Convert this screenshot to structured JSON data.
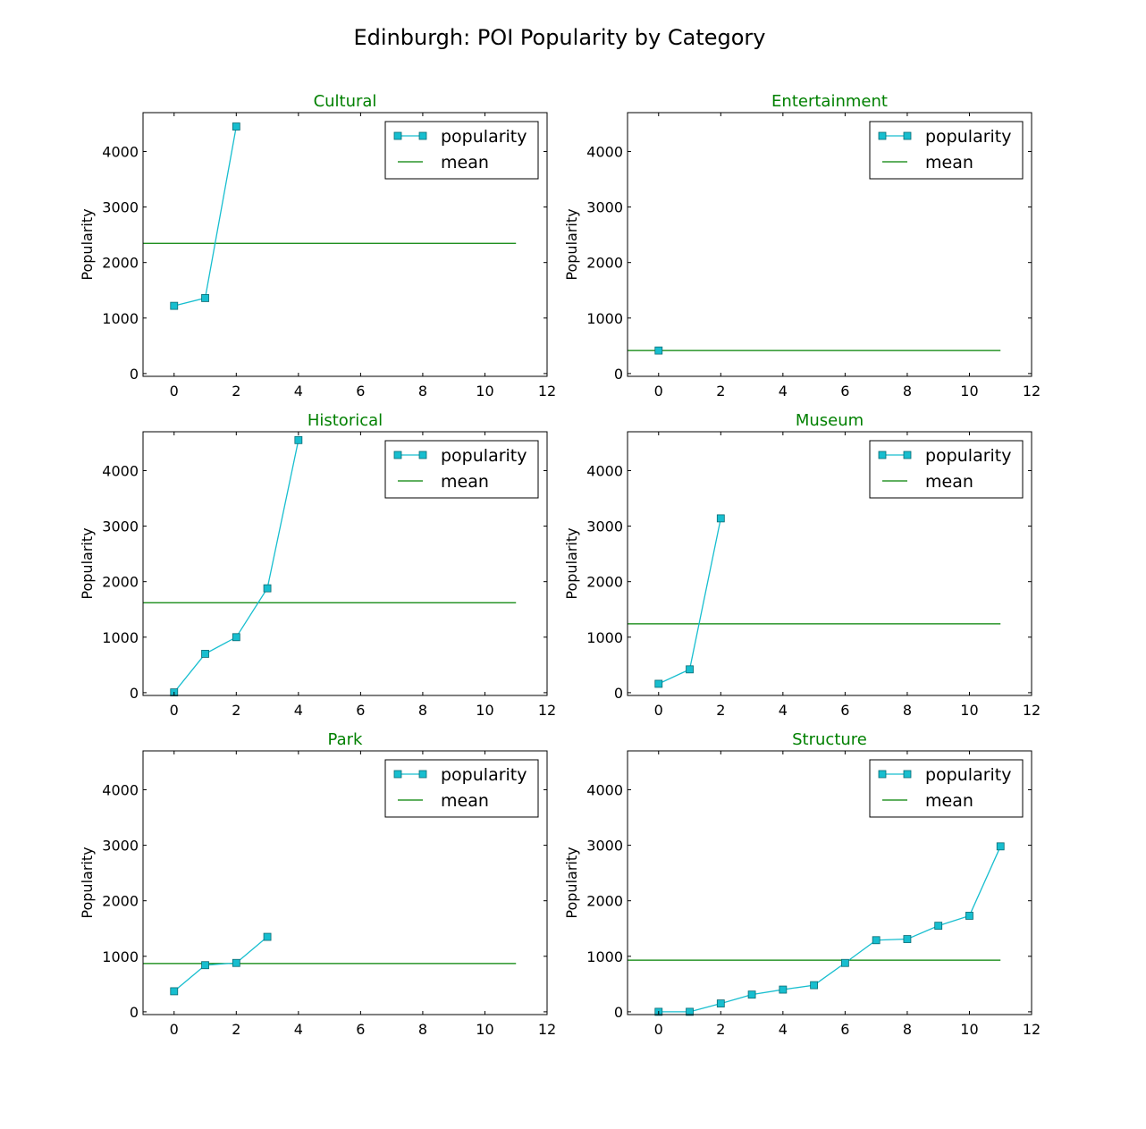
{
  "figure": {
    "title": "Edinburgh: POI Popularity by Category"
  },
  "colors": {
    "line": "#17becf",
    "marker_fill": "#17becf",
    "marker_edge": "#0b6b73",
    "mean": "#008000",
    "subtitle": "#008000",
    "axes": "#000000"
  },
  "chart_data": [
    {
      "type": "line",
      "title": "Cultural",
      "ylabel": "Popularity",
      "x": [
        0,
        1,
        2
      ],
      "series": [
        {
          "name": "popularity",
          "values": [
            1220,
            1360,
            4450
          ]
        }
      ],
      "mean": 2345,
      "mean_label": "mean",
      "mean_range": [
        -1,
        11
      ],
      "xlim": [
        -1,
        12
      ],
      "ylim": [
        -50,
        4700
      ],
      "xticks": [
        0,
        2,
        4,
        6,
        8,
        10,
        12
      ],
      "yticks": [
        0,
        1000,
        2000,
        3000,
        4000
      ],
      "legend": "top-right"
    },
    {
      "type": "line",
      "title": "Entertainment",
      "ylabel": "Popularity",
      "x": [
        0
      ],
      "series": [
        {
          "name": "popularity",
          "values": [
            415
          ]
        }
      ],
      "mean": 415,
      "mean_label": "mean",
      "mean_range": [
        -1,
        11
      ],
      "xlim": [
        -1,
        12
      ],
      "ylim": [
        -50,
        4700
      ],
      "xticks": [
        0,
        2,
        4,
        6,
        8,
        10,
        12
      ],
      "yticks": [
        0,
        1000,
        2000,
        3000,
        4000
      ],
      "legend": "top-right"
    },
    {
      "type": "line",
      "title": "Historical",
      "ylabel": "Popularity",
      "x": [
        0,
        1,
        2,
        3,
        4
      ],
      "series": [
        {
          "name": "popularity",
          "values": [
            5,
            700,
            1000,
            1880,
            4550
          ]
        }
      ],
      "mean": 1620,
      "mean_label": "mean",
      "mean_range": [
        -1,
        11
      ],
      "xlim": [
        -1,
        12
      ],
      "ylim": [
        -50,
        4700
      ],
      "xticks": [
        0,
        2,
        4,
        6,
        8,
        10,
        12
      ],
      "yticks": [
        0,
        1000,
        2000,
        3000,
        4000
      ],
      "legend": "top-right"
    },
    {
      "type": "line",
      "title": "Museum",
      "ylabel": "Popularity",
      "x": [
        0,
        1,
        2
      ],
      "series": [
        {
          "name": "popularity",
          "values": [
            160,
            420,
            3140
          ]
        }
      ],
      "mean": 1240,
      "mean_label": "mean",
      "mean_range": [
        -1,
        11
      ],
      "xlim": [
        -1,
        12
      ],
      "ylim": [
        -50,
        4700
      ],
      "xticks": [
        0,
        2,
        4,
        6,
        8,
        10,
        12
      ],
      "yticks": [
        0,
        1000,
        2000,
        3000,
        4000
      ],
      "legend": "top-right"
    },
    {
      "type": "line",
      "title": "Park",
      "ylabel": "Popularity",
      "x": [
        0,
        1,
        2,
        3
      ],
      "series": [
        {
          "name": "popularity",
          "values": [
            370,
            840,
            880,
            1350
          ]
        }
      ],
      "mean": 870,
      "mean_label": "mean",
      "mean_range": [
        -1,
        11
      ],
      "xlim": [
        -1,
        12
      ],
      "ylim": [
        -50,
        4700
      ],
      "xticks": [
        0,
        2,
        4,
        6,
        8,
        10,
        12
      ],
      "yticks": [
        0,
        1000,
        2000,
        3000,
        4000
      ],
      "legend": "top-right"
    },
    {
      "type": "line",
      "title": "Structure",
      "ylabel": "Popularity",
      "x": [
        0,
        1,
        2,
        3,
        4,
        5,
        6,
        7,
        8,
        9,
        10,
        11
      ],
      "series": [
        {
          "name": "popularity",
          "values": [
            0,
            0,
            150,
            310,
            400,
            480,
            880,
            1290,
            1310,
            1550,
            1730,
            2980
          ]
        }
      ],
      "mean": 930,
      "mean_label": "mean",
      "mean_range": [
        -1,
        11
      ],
      "xlim": [
        -1,
        12
      ],
      "ylim": [
        -50,
        4700
      ],
      "xticks": [
        0,
        2,
        4,
        6,
        8,
        10,
        12
      ],
      "yticks": [
        0,
        1000,
        2000,
        3000,
        4000
      ],
      "legend": "top-right"
    }
  ]
}
